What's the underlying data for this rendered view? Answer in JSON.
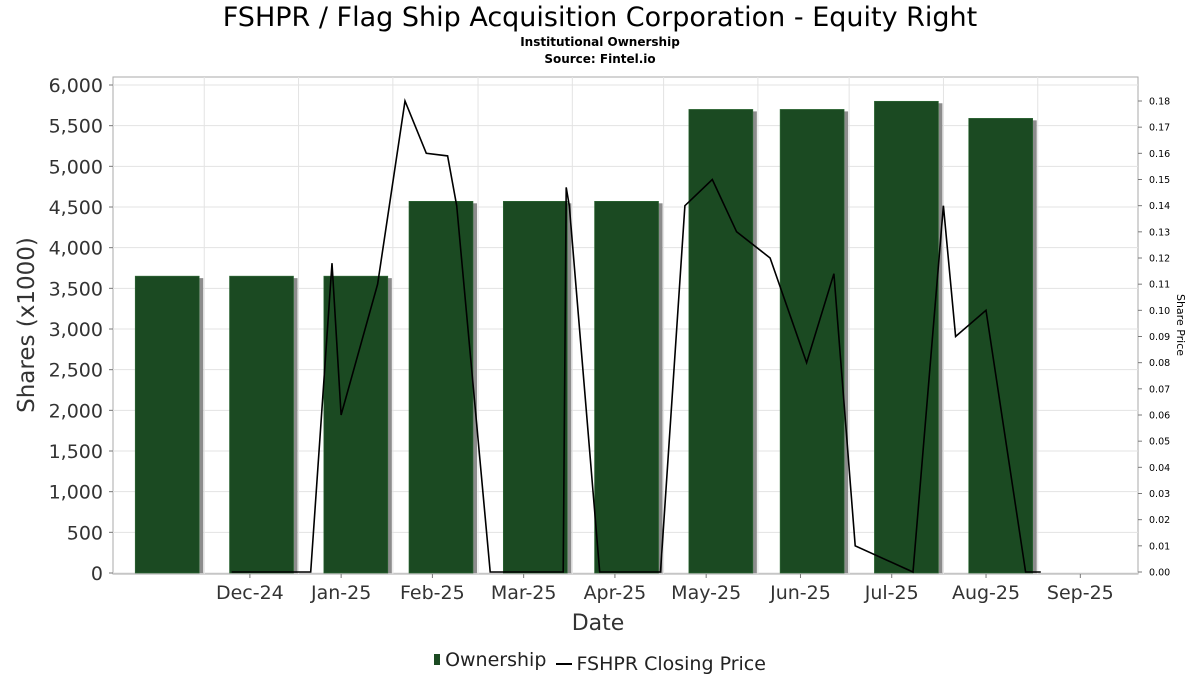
{
  "header": {
    "title": "FSHPR / Flag Ship Acquisition Corporation - Equity Right",
    "subtitle": "Institutional Ownership",
    "source": "Source: Fintel.io"
  },
  "legend": {
    "ownership": "Ownership",
    "price": "FSHPR Closing Price"
  },
  "colors": {
    "bar": "#1b4a22",
    "bar_shadow": "#8c8c8c",
    "line": "#000000",
    "grid": "#e3e3e3"
  },
  "chart_data": {
    "type": "bar",
    "title": "FSHPR / Flag Ship Acquisition Corporation - Equity Right",
    "xlabel": "Date",
    "ylabel": "Shares (x1000)",
    "y2label": "Share Price",
    "ylim": [
      0,
      6000
    ],
    "y2lim": [
      0,
      0.185
    ],
    "grid": true,
    "legend_position": "bottom",
    "x_ticks": [
      "Dec-24",
      "Jan-25",
      "Feb-25",
      "Mar-25",
      "Apr-25",
      "May-25",
      "Jun-25",
      "Jul-25",
      "Aug-25",
      "Sep-25"
    ],
    "y_ticks": [
      "0",
      "500",
      "1,000",
      "1,500",
      "2,000",
      "2,500",
      "3,000",
      "3,500",
      "4,000",
      "4,500",
      "5,000",
      "5,500",
      "6,000"
    ],
    "y2_ticks": [
      "0.00",
      "0.01",
      "0.02",
      "0.03",
      "0.04",
      "0.05",
      "0.06",
      "0.07",
      "0.08",
      "0.09",
      "0.10",
      "0.11",
      "0.12",
      "0.13",
      "0.14",
      "0.15",
      "0.16",
      "0.17",
      "0.18"
    ],
    "series": [
      {
        "name": "Ownership",
        "type": "bar",
        "x": [
          "2024-11-30",
          "2024-12-31",
          "2025-01-31",
          "2025-02-28",
          "2025-03-31",
          "2025-04-30",
          "2025-05-31",
          "2025-06-30",
          "2025-07-31",
          "2025-08-31"
        ],
        "values": [
          3650,
          3650,
          3650,
          4570,
          4570,
          4570,
          5700,
          5700,
          5800,
          5590
        ]
      },
      {
        "name": "FSHPR Closing Price",
        "type": "line",
        "points": [
          [
            "2024-12-10",
            0.0
          ],
          [
            "2024-12-25",
            0.0
          ],
          [
            "2025-01-05",
            0.0
          ],
          [
            "2025-01-12",
            0.118
          ],
          [
            "2025-01-15",
            0.06
          ],
          [
            "2025-01-27",
            0.11
          ],
          [
            "2025-02-05",
            0.18
          ],
          [
            "2025-02-12",
            0.16
          ],
          [
            "2025-02-19",
            0.159
          ],
          [
            "2025-02-22",
            0.14
          ],
          [
            "2025-03-05",
            0.0
          ],
          [
            "2025-03-29",
            0.0
          ],
          [
            "2025-03-30",
            0.147
          ],
          [
            "2025-03-31",
            0.14
          ],
          [
            "2025-04-10",
            0.0
          ],
          [
            "2025-04-30",
            0.0
          ],
          [
            "2025-05-08",
            0.14
          ],
          [
            "2025-05-17",
            0.15
          ],
          [
            "2025-05-25",
            0.13
          ],
          [
            "2025-06-05",
            0.12
          ],
          [
            "2025-06-17",
            0.08
          ],
          [
            "2025-06-26",
            0.114
          ],
          [
            "2025-07-03",
            0.01
          ],
          [
            "2025-07-22",
            0.0
          ],
          [
            "2025-08-01",
            0.14
          ],
          [
            "2025-08-05",
            0.09
          ],
          [
            "2025-08-15",
            0.1
          ],
          [
            "2025-08-28",
            0.0
          ],
          [
            "2025-09-02",
            0.0
          ]
        ]
      }
    ]
  }
}
